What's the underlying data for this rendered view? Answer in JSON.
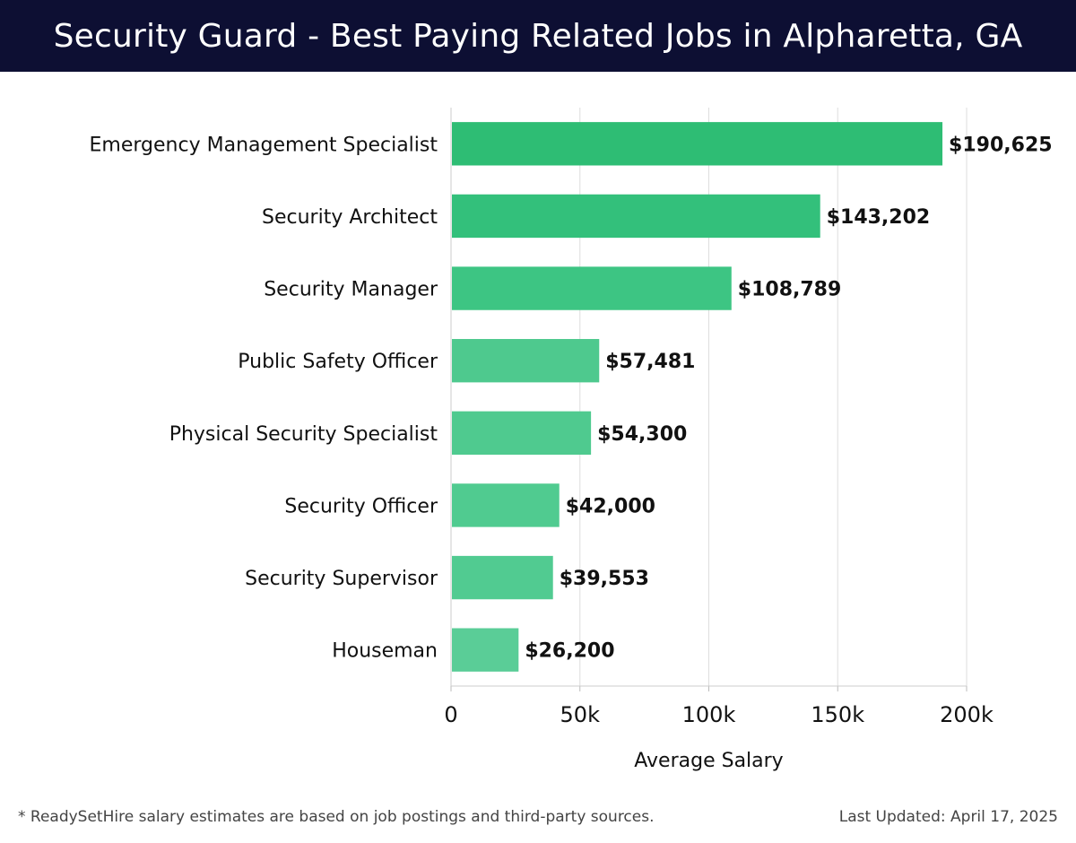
{
  "title": "Security Guard - Best Paying Related Jobs in Alpharetta, GA",
  "footer": {
    "note": "* ReadySetHire salary estimates are based on job postings and third-party sources.",
    "updated": "Last Updated: April 17, 2025"
  },
  "colors": {
    "header_bg": "#0d0f33",
    "bar_colors": [
      "#2ebd74",
      "#33c07b",
      "#3dc583",
      "#4ec98e",
      "#4fca8f",
      "#50cb90",
      "#51cb91",
      "#5acd97"
    ]
  },
  "chart_data": {
    "type": "bar",
    "orientation": "horizontal",
    "categories": [
      "Emergency Management Specialist",
      "Security Architect",
      "Security Manager",
      "Public Safety Officer",
      "Physical Security Specialist",
      "Security Officer",
      "Security Supervisor",
      "Houseman"
    ],
    "values": [
      190625,
      143202,
      108789,
      57481,
      54300,
      42000,
      39553,
      26200
    ],
    "value_labels": [
      "$190,625",
      "$143,202",
      "$108,789",
      "$57,481",
      "$54,300",
      "$42,000",
      "$39,553",
      "$26,200"
    ],
    "xlabel": "Average Salary",
    "ylabel": "",
    "xlim": [
      0,
      200000
    ],
    "xticks": [
      0,
      50000,
      100000,
      150000,
      200000
    ],
    "xtick_labels": [
      "0",
      "50k",
      "100k",
      "150k",
      "200k"
    ],
    "grid": "vertical"
  }
}
